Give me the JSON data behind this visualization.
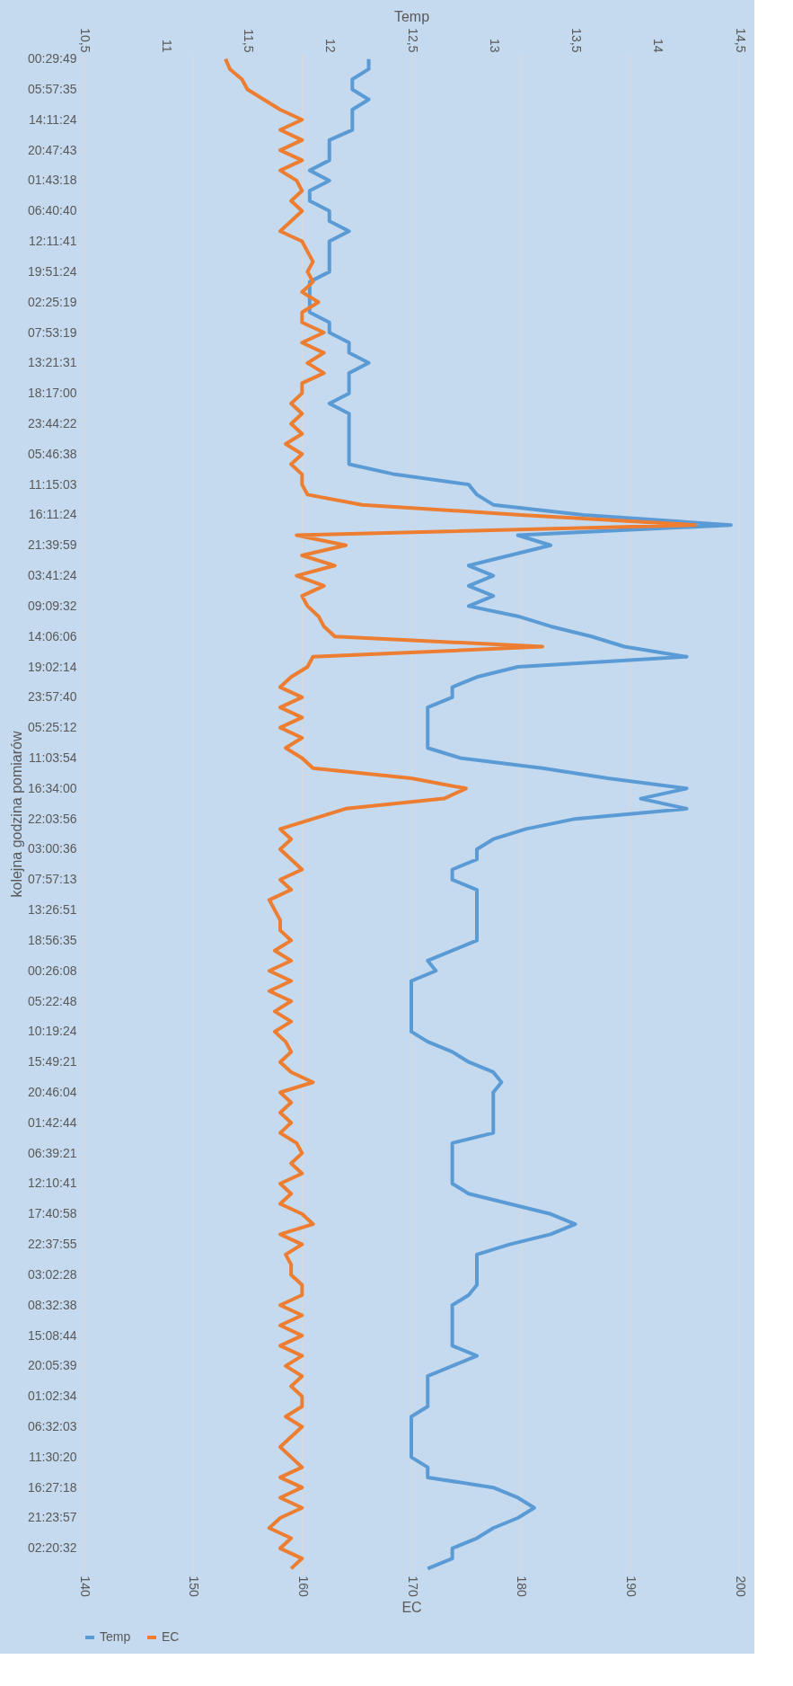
{
  "chart_data": {
    "type": "line",
    "orientation": "horizontal",
    "categories": [
      "00:29:49",
      null,
      null,
      "05:57:35",
      null,
      null,
      "14:11:24",
      null,
      null,
      "20:47:43",
      null,
      null,
      "01:43:18",
      null,
      null,
      "06:40:40",
      null,
      null,
      "12:11:41",
      null,
      null,
      "19:51:24",
      null,
      null,
      "02:25:19",
      null,
      null,
      "07:53:19",
      null,
      null,
      "13:21:31",
      null,
      null,
      "18:17:00",
      null,
      null,
      "23:44:22",
      null,
      null,
      "05:46:38",
      null,
      null,
      "11:15:03",
      null,
      null,
      "16:11:24",
      null,
      null,
      "21:39:59",
      null,
      null,
      "03:41:24",
      null,
      null,
      "09:09:32",
      null,
      null,
      "14:06:06",
      null,
      null,
      "19:02:14",
      null,
      null,
      "23:57:40",
      null,
      null,
      "05:25:12",
      null,
      null,
      "11:03:54",
      null,
      null,
      "16:34:00",
      null,
      null,
      "22:03:56",
      null,
      null,
      "03:00:36",
      null,
      null,
      "07:57:13",
      null,
      null,
      "13:26:51",
      null,
      null,
      "18:56:35",
      null,
      null,
      "00:26:08",
      null,
      null,
      "05:22:48",
      null,
      null,
      "10:19:24",
      null,
      null,
      "15:49:21",
      null,
      null,
      "20:46:04",
      null,
      null,
      "01:42:44",
      null,
      null,
      "06:39:21",
      null,
      null,
      "12:10:41",
      null,
      null,
      "17:40:58",
      null,
      null,
      "22:37:55",
      null,
      null,
      "03:02:28",
      null,
      null,
      "08:32:38",
      null,
      null,
      "15:08:44",
      null,
      null,
      "20:05:39",
      null,
      null,
      "01:02:34",
      null,
      null,
      "06:32:03",
      null,
      null,
      "11:30:20",
      null,
      null,
      "16:27:18",
      null,
      null,
      "21:23:57",
      null,
      null,
      "02:20:32",
      null,
      null
    ],
    "series": [
      {
        "name": "Temp",
        "color": "#5b9bd5",
        "axis": "x2",
        "values": [
          12.24,
          12.24,
          12.14,
          12.14,
          12.24,
          12.14,
          12.14,
          12.14,
          12.0,
          12.0,
          12.0,
          11.88,
          12.0,
          11.88,
          11.88,
          12.0,
          12.0,
          12.12,
          12.0,
          12.0,
          12.0,
          12.0,
          11.88,
          11.88,
          11.88,
          11.88,
          12.0,
          12.0,
          12.12,
          12.12,
          12.24,
          12.12,
          12.12,
          12.12,
          12.0,
          12.12,
          12.12,
          12.12,
          12.12,
          12.12,
          12.12,
          12.4,
          12.85,
          12.9,
          13.0,
          13.55,
          14.45,
          13.15,
          13.35,
          13.1,
          12.85,
          13.0,
          12.85,
          13.0,
          12.85,
          13.15,
          13.35,
          13.6,
          13.8,
          14.18,
          13.15,
          12.9,
          12.75,
          12.75,
          12.6,
          12.6,
          12.6,
          12.6,
          12.6,
          12.8,
          13.3,
          13.7,
          14.18,
          13.9,
          14.18,
          13.5,
          13.2,
          13.0,
          12.9,
          12.9,
          12.75,
          12.75,
          12.9,
          12.9,
          12.9,
          12.9,
          12.9,
          12.9,
          12.75,
          12.6,
          12.65,
          12.5,
          12.5,
          12.5,
          12.5,
          12.5,
          12.5,
          12.6,
          12.75,
          12.85,
          13.0,
          13.05,
          13.0,
          13.0,
          13.0,
          13.0,
          13.0,
          12.75,
          12.75,
          12.75,
          12.75,
          12.75,
          12.85,
          13.1,
          13.35,
          13.5,
          13.35,
          13.1,
          12.9,
          12.9,
          12.9,
          12.9,
          12.85,
          12.75,
          12.75,
          12.75,
          12.75,
          12.75,
          12.9,
          12.75,
          12.6,
          12.6,
          12.6,
          12.6,
          12.5,
          12.5,
          12.5,
          12.5,
          12.5,
          12.6,
          12.6,
          13.0,
          13.15,
          13.25,
          13.15,
          13.0,
          12.9,
          12.75,
          12.75,
          12.6
        ]
      },
      {
        "name": "EC",
        "color": "#ed7d31",
        "values": [
          153.0,
          153.4,
          154.5,
          155.0,
          156.5,
          158.0,
          160.0,
          158.0,
          160.0,
          158.0,
          160.0,
          158.0,
          159.5,
          160.0,
          159.0,
          160.0,
          159.0,
          158.0,
          160.0,
          160.5,
          161.0,
          160.5,
          161.0,
          160.0,
          161.5,
          160.0,
          160.0,
          162.0,
          160.0,
          162.0,
          160.5,
          162.0,
          160.0,
          160.0,
          159.0,
          160.0,
          159.0,
          160.0,
          158.5,
          160.0,
          159.0,
          160.0,
          160.0,
          160.5,
          165.5,
          180.0,
          196.0,
          159.5,
          164.0,
          160.0,
          163.0,
          159.5,
          162.0,
          160.0,
          160.5,
          161.5,
          162.0,
          163.0,
          182.0,
          161.0,
          160.5,
          159.0,
          158.0,
          160.0,
          158.0,
          160.0,
          158.0,
          160.0,
          158.5,
          160.0,
          161.0,
          170.0,
          175.0,
          173.0,
          164.0,
          161.0,
          158.0,
          159.0,
          158.0,
          159.0,
          160.0,
          158.0,
          159.0,
          157.0,
          157.5,
          158.0,
          158.0,
          159.0,
          157.5,
          159.0,
          157.0,
          159.0,
          157.0,
          159.0,
          157.5,
          159.0,
          157.5,
          158.5,
          159.0,
          158.0,
          159.0,
          161.0,
          158.0,
          159.0,
          158.0,
          159.0,
          158.0,
          159.5,
          160.0,
          159.0,
          160.0,
          158.0,
          159.0,
          158.0,
          160.0,
          161.0,
          158.0,
          160.0,
          158.5,
          159.0,
          159.0,
          160.0,
          160.0,
          158.0,
          160.0,
          158.0,
          160.0,
          158.0,
          160.0,
          158.5,
          160.0,
          159.0,
          160.0,
          160.0,
          158.5,
          160.0,
          159.0,
          158.0,
          159.0,
          160.0,
          158.0,
          160.0,
          158.0,
          160.0,
          158.0,
          157.0,
          159.0,
          158.0,
          160.0,
          159.0
        ]
      }
    ],
    "ylabel": "kolejna godzina pomiarów",
    "xlabel": "EC",
    "xlim": [
      140,
      200
    ],
    "xticks": [
      140,
      150,
      160,
      170,
      180,
      190,
      200
    ],
    "x2label": "Temp",
    "x2lim": [
      10.5,
      14.5
    ],
    "x2ticks": [
      {
        "value": 10.5,
        "label": "10,5"
      },
      11,
      {
        "value": 11.5,
        "label": "11,5"
      },
      12,
      {
        "value": 12.5,
        "label": "12,5"
      },
      13,
      {
        "value": 13.5,
        "label": "13,5"
      },
      14,
      {
        "value": 14.5,
        "label": "14,5"
      }
    ],
    "grid": "x",
    "legend": "bottom",
    "marker": "none",
    "line_style": "solid"
  }
}
